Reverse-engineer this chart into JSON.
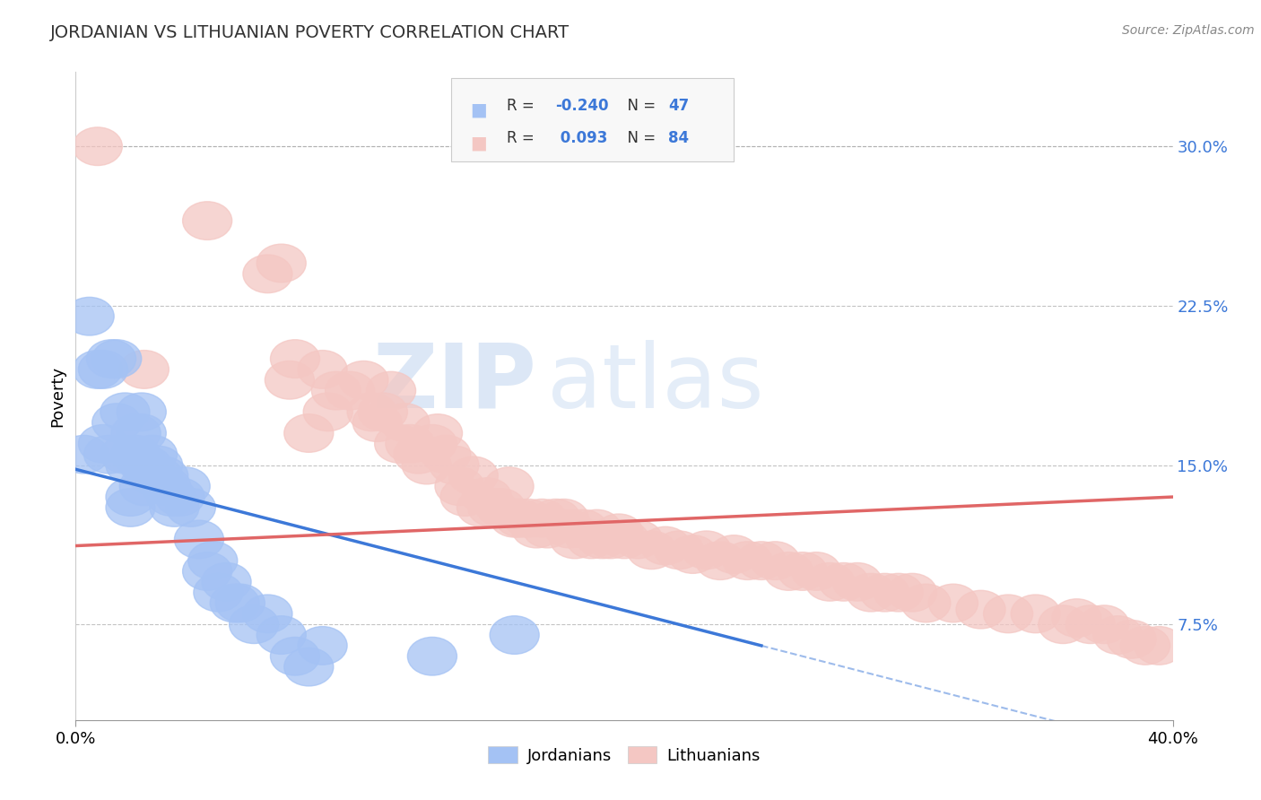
{
  "title": "JORDANIAN VS LITHUANIAN POVERTY CORRELATION CHART",
  "source_text": "Source: ZipAtlas.com",
  "ylabel": "Poverty",
  "xlim": [
    0.0,
    0.4
  ],
  "ylim": [
    0.03,
    0.335
  ],
  "yticks": [
    0.075,
    0.15,
    0.225,
    0.3
  ],
  "ytick_labels": [
    "7.5%",
    "15.0%",
    "22.5%",
    "30.0%"
  ],
  "xticks": [
    0.0,
    0.4
  ],
  "xtick_labels": [
    "0.0%",
    "40.0%"
  ],
  "blue_color": "#a4c2f4",
  "pink_color": "#f4c7c3",
  "blue_line_color": "#3c78d8",
  "pink_line_color": "#e06666",
  "watermark_zip": "ZIP",
  "watermark_atlas": "atlas",
  "jordanians_x": [
    0.003,
    0.005,
    0.008,
    0.01,
    0.01,
    0.012,
    0.013,
    0.015,
    0.015,
    0.018,
    0.018,
    0.02,
    0.02,
    0.02,
    0.022,
    0.022,
    0.024,
    0.024,
    0.025,
    0.025,
    0.026,
    0.028,
    0.028,
    0.03,
    0.03,
    0.032,
    0.033,
    0.035,
    0.036,
    0.038,
    0.04,
    0.042,
    0.045,
    0.048,
    0.05,
    0.052,
    0.055,
    0.058,
    0.06,
    0.065,
    0.07,
    0.075,
    0.08,
    0.085,
    0.09,
    0.13,
    0.16
  ],
  "jordanians_y": [
    0.155,
    0.22,
    0.195,
    0.195,
    0.16,
    0.155,
    0.2,
    0.17,
    0.2,
    0.155,
    0.175,
    0.135,
    0.13,
    0.15,
    0.165,
    0.155,
    0.175,
    0.165,
    0.15,
    0.14,
    0.15,
    0.145,
    0.155,
    0.15,
    0.145,
    0.145,
    0.14,
    0.135,
    0.13,
    0.135,
    0.14,
    0.13,
    0.115,
    0.1,
    0.105,
    0.09,
    0.095,
    0.085,
    0.085,
    0.075,
    0.08,
    0.07,
    0.06,
    0.055,
    0.065,
    0.06,
    0.07
  ],
  "lithuanians_x": [
    0.008,
    0.025,
    0.048,
    0.07,
    0.075,
    0.078,
    0.08,
    0.085,
    0.09,
    0.092,
    0.095,
    0.1,
    0.105,
    0.108,
    0.11,
    0.112,
    0.115,
    0.118,
    0.12,
    0.122,
    0.125,
    0.128,
    0.13,
    0.132,
    0.135,
    0.138,
    0.14,
    0.142,
    0.145,
    0.148,
    0.15,
    0.152,
    0.155,
    0.158,
    0.16,
    0.162,
    0.165,
    0.168,
    0.17,
    0.172,
    0.175,
    0.178,
    0.18,
    0.182,
    0.185,
    0.188,
    0.19,
    0.192,
    0.195,
    0.198,
    0.2,
    0.205,
    0.21,
    0.215,
    0.22,
    0.225,
    0.23,
    0.235,
    0.24,
    0.245,
    0.25,
    0.255,
    0.26,
    0.265,
    0.27,
    0.275,
    0.28,
    0.285,
    0.29,
    0.295,
    0.3,
    0.305,
    0.31,
    0.32,
    0.33,
    0.34,
    0.35,
    0.36,
    0.365,
    0.37,
    0.375,
    0.38,
    0.385,
    0.39,
    0.395
  ],
  "lithuanians_y": [
    0.3,
    0.195,
    0.265,
    0.24,
    0.245,
    0.19,
    0.2,
    0.165,
    0.195,
    0.175,
    0.185,
    0.185,
    0.19,
    0.175,
    0.17,
    0.175,
    0.185,
    0.16,
    0.17,
    0.16,
    0.155,
    0.15,
    0.16,
    0.165,
    0.155,
    0.15,
    0.14,
    0.135,
    0.145,
    0.13,
    0.135,
    0.13,
    0.13,
    0.14,
    0.125,
    0.125,
    0.125,
    0.12,
    0.125,
    0.12,
    0.125,
    0.125,
    0.12,
    0.115,
    0.12,
    0.115,
    0.12,
    0.115,
    0.115,
    0.118,
    0.115,
    0.115,
    0.11,
    0.112,
    0.11,
    0.108,
    0.11,
    0.105,
    0.108,
    0.105,
    0.105,
    0.105,
    0.1,
    0.1,
    0.1,
    0.095,
    0.095,
    0.095,
    0.09,
    0.09,
    0.09,
    0.09,
    0.085,
    0.085,
    0.082,
    0.08,
    0.08,
    0.075,
    0.078,
    0.075,
    0.075,
    0.07,
    0.068,
    0.065,
    0.065
  ]
}
